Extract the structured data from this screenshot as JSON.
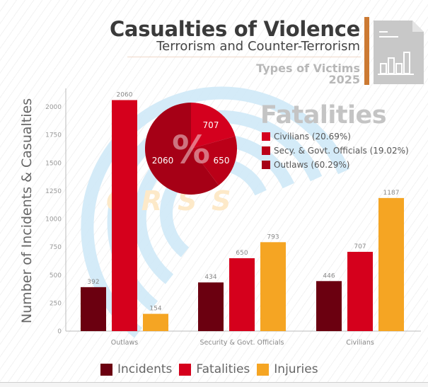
{
  "header": {
    "title": "Casualties of Violence",
    "subtitle": "Terrorism and Counter-Terrorism",
    "type_label": "Types of Victims",
    "year": "2025",
    "icon": "report-chart-icon",
    "watermark": "CRSS"
  },
  "colors": {
    "incidents": "#6b0010",
    "fatalities": "#d5001c",
    "injuries": "#f5a523",
    "pie_civilians": "#d4001e",
    "pie_security": "#bb0018",
    "pie_outlaws": "#a60016",
    "accent": "#cc7a33"
  },
  "pie": {
    "title": "Fatalities",
    "center_symbol": "%",
    "slices": [
      {
        "name": "Civilians",
        "value": 707,
        "percent": 20.69,
        "legend": "Civilians (20.69%)"
      },
      {
        "name": "Secy. & Govt. Officials",
        "value": 650,
        "percent": 19.02,
        "legend": "Secy. & Govt. Officials (19.02%)"
      },
      {
        "name": "Outlaws",
        "value": 2060,
        "percent": 60.29,
        "legend": "Outlaws (60.29%)"
      }
    ]
  },
  "chart_data": {
    "type": "bar",
    "title": "Casualties of Violence — Types of Victims 2025",
    "xlabel": "",
    "ylabel": "Number of Incidents & Casualties",
    "ylim": [
      0,
      2150
    ],
    "yticks": [
      0,
      250,
      500,
      750,
      1000,
      1250,
      1500,
      1750,
      2000
    ],
    "grid": false,
    "legend_position": "bottom",
    "categories": [
      "Outlaws",
      "Security & Govt. Officials",
      "Civilians"
    ],
    "series": [
      {
        "name": "Incidents",
        "values": [
          392,
          434,
          446
        ]
      },
      {
        "name": "Fatalities",
        "values": [
          2060,
          650,
          707
        ]
      },
      {
        "name": "Injuries",
        "values": [
          154,
          793,
          1187
        ]
      }
    ]
  },
  "legend": {
    "items": [
      "Incidents",
      "Fatalities",
      "Injuries"
    ]
  }
}
